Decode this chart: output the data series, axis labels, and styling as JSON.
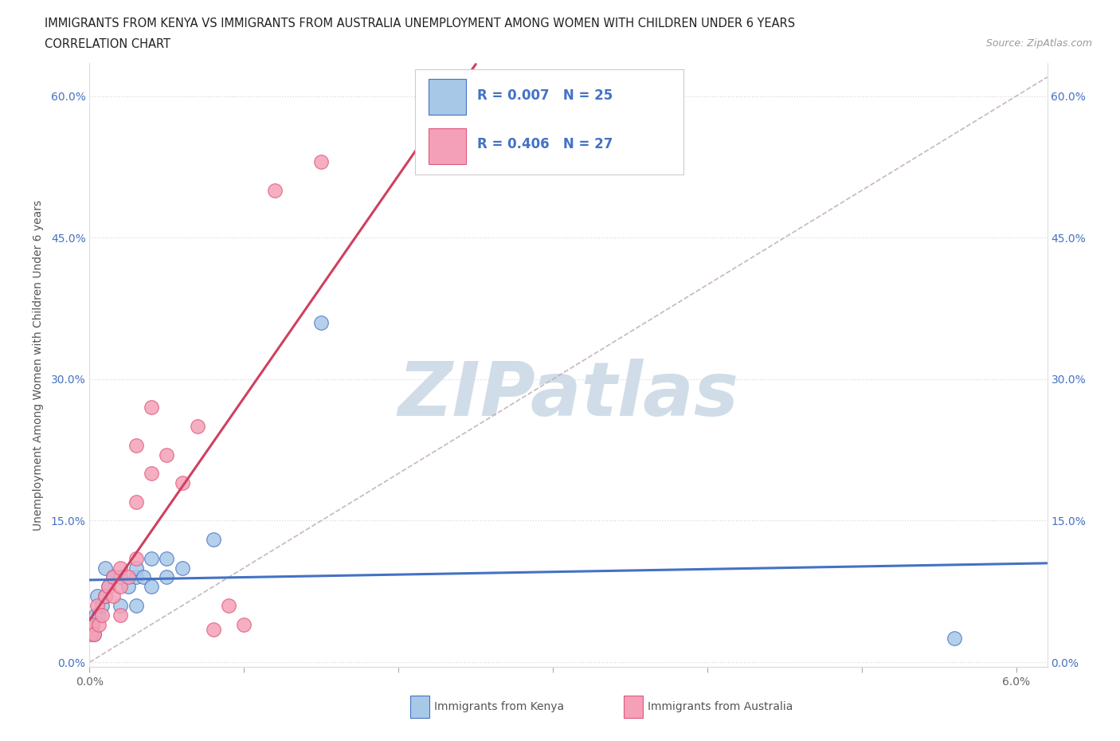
{
  "title_line1": "IMMIGRANTS FROM KENYA VS IMMIGRANTS FROM AUSTRALIA UNEMPLOYMENT AMONG WOMEN WITH CHILDREN UNDER 6 YEARS",
  "title_line2": "CORRELATION CHART",
  "source_text": "Source: ZipAtlas.com",
  "ylabel": "Unemployment Among Women with Children Under 6 years",
  "xlim": [
    0.0,
    0.062
  ],
  "ylim": [
    -0.005,
    0.635
  ],
  "xtick_positions": [
    0.0,
    0.01,
    0.02,
    0.03,
    0.04,
    0.05,
    0.06
  ],
  "xtick_labels": [
    "0.0%",
    "",
    "",
    "",
    "",
    "",
    "6.0%"
  ],
  "ytick_positions": [
    0.0,
    0.15,
    0.3,
    0.45,
    0.6
  ],
  "ytick_labels": [
    "0.0%",
    "15.0%",
    "30.0%",
    "45.0%",
    "60.0%"
  ],
  "kenya_color": "#a8c8e8",
  "australia_color": "#f4a0b8",
  "kenya_edge_color": "#4472c4",
  "australia_edge_color": "#e05878",
  "trend_kenya_color": "#4472c4",
  "trend_australia_color": "#d04060",
  "diagonal_dash_color": "#c0b0b8",
  "watermark": "ZIPatlas",
  "watermark_color": "#d0dde8",
  "grid_color": "#d8d8d8",
  "background_color": "#ffffff",
  "title_color": "#222222",
  "r_kenya": "0.007",
  "n_kenya": "25",
  "r_australia": "0.406",
  "n_australia": "27",
  "kenya_x": [
    0.0002,
    0.0003,
    0.0004,
    0.0005,
    0.0006,
    0.0008,
    0.001,
    0.001,
    0.0012,
    0.0015,
    0.002,
    0.002,
    0.0025,
    0.003,
    0.003,
    0.003,
    0.0035,
    0.004,
    0.004,
    0.005,
    0.005,
    0.006,
    0.008,
    0.015,
    0.056
  ],
  "kenya_y": [
    0.04,
    0.03,
    0.05,
    0.07,
    0.05,
    0.06,
    0.07,
    0.1,
    0.08,
    0.09,
    0.06,
    0.09,
    0.08,
    0.06,
    0.09,
    0.1,
    0.09,
    0.08,
    0.11,
    0.09,
    0.11,
    0.1,
    0.13,
    0.36,
    0.025
  ],
  "australia_x": [
    0.0001,
    0.0002,
    0.0003,
    0.0005,
    0.0006,
    0.0008,
    0.001,
    0.0012,
    0.0015,
    0.0015,
    0.002,
    0.002,
    0.002,
    0.0025,
    0.003,
    0.003,
    0.003,
    0.004,
    0.004,
    0.005,
    0.006,
    0.007,
    0.008,
    0.009,
    0.01,
    0.012,
    0.015
  ],
  "australia_y": [
    0.03,
    0.04,
    0.03,
    0.06,
    0.04,
    0.05,
    0.07,
    0.08,
    0.07,
    0.09,
    0.05,
    0.08,
    0.1,
    0.09,
    0.11,
    0.17,
    0.23,
    0.2,
    0.27,
    0.22,
    0.19,
    0.25,
    0.035,
    0.06,
    0.04,
    0.5,
    0.53
  ]
}
